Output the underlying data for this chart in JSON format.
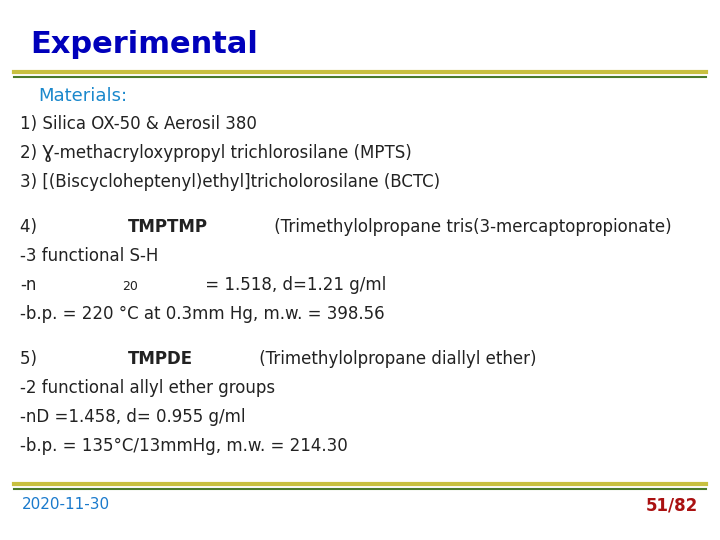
{
  "title": "Experimental",
  "title_color": "#0000bb",
  "title_fontsize": 22,
  "bg_color": "#ffffff",
  "top_line1_color": "#c8c040",
  "top_line2_color": "#4a7a2a",
  "materials_label": "Materials:",
  "materials_color": "#1a88cc",
  "materials_fontsize": 13,
  "body_fontsize": 12,
  "body_color": "#222222",
  "footer_date": "2020-11-30",
  "footer_date_color": "#1a7acc",
  "footer_page": "51/82",
  "footer_page_color": "#aa1111",
  "footer_fontsize": 11,
  "content_lines": [
    {
      "text": "1) Silica OX-50 & Aerosil 380",
      "bold_word": null
    },
    {
      "text": "2) Ɣ-methacryloxypropyl trichlorosilane (MPTS)",
      "bold_word": null
    },
    {
      "text": "3) [(Biscycloheptenyl)ethyl]tricholorosilane (BCTC)",
      "bold_word": null
    },
    {
      "text": "",
      "bold_word": null
    },
    {
      "text": "4) TMPTMP (Trimethylolpropane tris(3-mercaptopropionate)",
      "bold_word": "TMPTMP"
    },
    {
      "text": "-3 functional S-H",
      "bold_word": null
    },
    {
      "text": "-n20 = 1.518, d=1.21 g/ml",
      "bold_word": null,
      "subscript_n": true
    },
    {
      "text": "-b.p. = 220 °C at 0.3mm Hg, m.w. = 398.56",
      "bold_word": null
    },
    {
      "text": "",
      "bold_word": null
    },
    {
      "text": "5) TMPDE (Trimethylolpropane diallyl ether)",
      "bold_word": "TMPDE"
    },
    {
      "text": "-2 functional allyl ether groups",
      "bold_word": null
    },
    {
      "text": "-nD =1.458, d= 0.955 g/ml",
      "bold_word": null
    },
    {
      "text": "-b.p. = 135°C/13mmHg, m.w. = 214.30",
      "bold_word": null
    }
  ]
}
